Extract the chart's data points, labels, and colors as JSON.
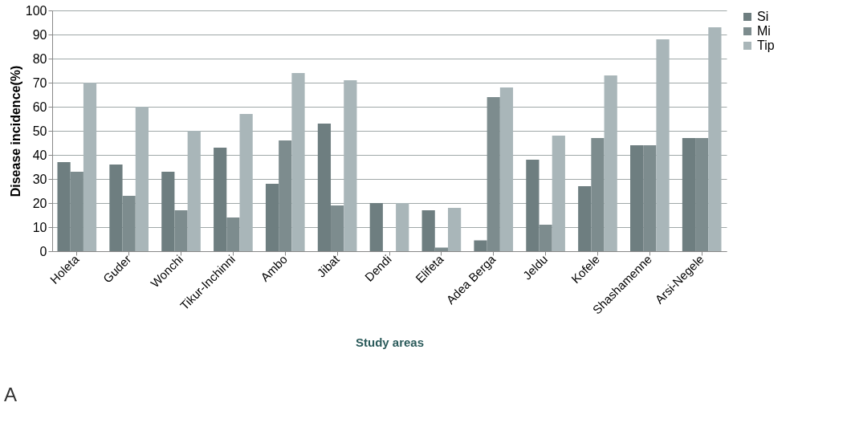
{
  "chart_data": {
    "type": "bar",
    "xlabel": "Study areas",
    "ylabel": "Disease incidence(%)",
    "categories": [
      "Holeta",
      "Guder",
      "Wonchi",
      "Tikur-Inchinni",
      "Ambo",
      "Jibat",
      "Dendi",
      "Elifeta",
      "Adea Berga",
      "Jeldu",
      "Kofele",
      "Shashamenne",
      "Arsi-Negele"
    ],
    "series": [
      {
        "name": "Si",
        "color": "#6e7e80",
        "values": [
          37,
          36,
          33,
          43,
          28,
          53,
          20,
          17,
          4.5,
          38,
          27,
          44,
          47
        ]
      },
      {
        "name": "Mi",
        "color": "#7d8c8e",
        "values": [
          33,
          23,
          17,
          14,
          46,
          19,
          0,
          1.5,
          64,
          11,
          47,
          44,
          47
        ]
      },
      {
        "name": "Tip",
        "color": "#a9b6b9",
        "values": [
          70,
          60,
          50,
          57,
          74,
          71,
          20,
          18,
          68,
          48,
          73,
          88,
          93
        ]
      }
    ],
    "ylim": [
      0,
      100
    ],
    "yticks": [
      0,
      10,
      20,
      30,
      40,
      50,
      60,
      70,
      80,
      90,
      100
    ],
    "grid": "y",
    "legend": "right",
    "annotations": [
      "A"
    ]
  }
}
